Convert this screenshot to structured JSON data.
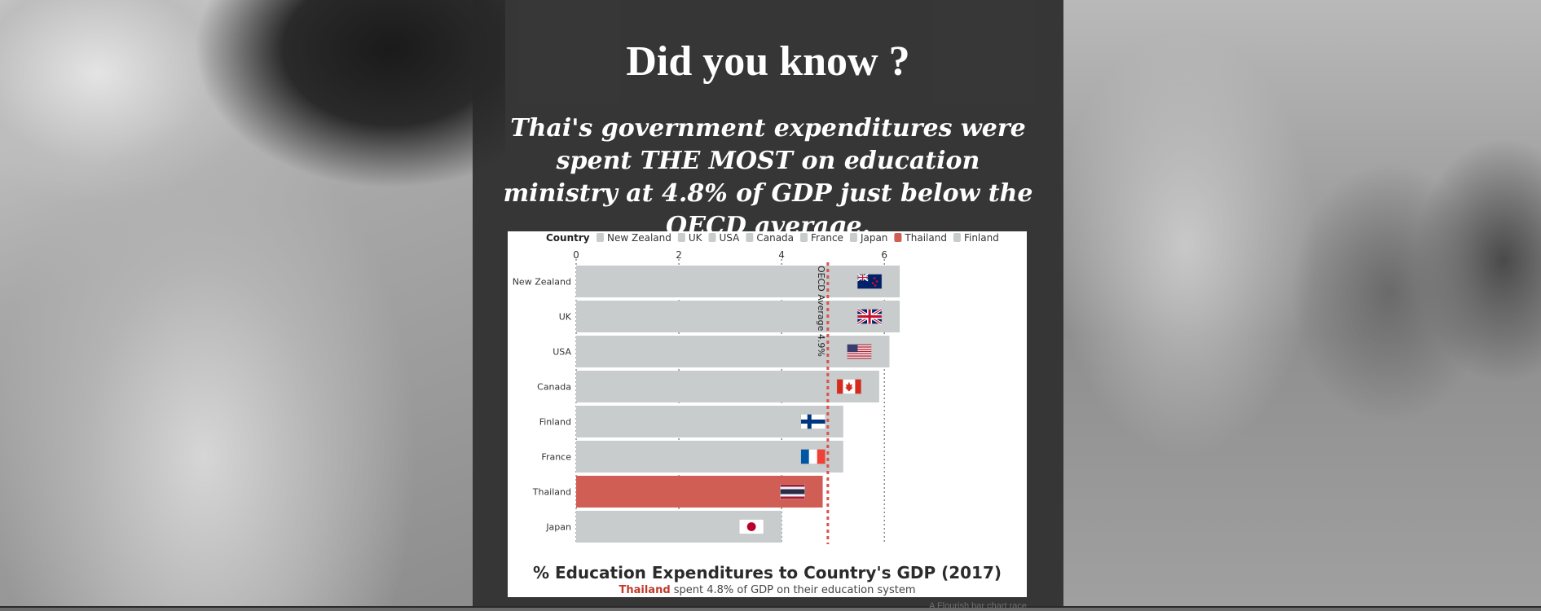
{
  "page": {
    "headline": "Did you know ?",
    "subheadline": "Thai's government expenditures were spent THE MOST on education ministry at 4.8% of GDP just below the OECD average.",
    "credit": "A Flourish bar chart race"
  },
  "colors": {
    "bar_default": "#c8cccc",
    "bar_highlight": "#d05e55",
    "reference_line": "#d9534f",
    "title_text": "#2b2b2b"
  },
  "chart_data": {
    "type": "bar",
    "orientation": "horizontal",
    "title": "% Education Expenditures to Country's GDP (2017)",
    "subtitle": {
      "highlight": "Thailand",
      "text": " spent 4.8% of GDP on their education system"
    },
    "legend": {
      "title": "Country",
      "position": "top",
      "entries": [
        {
          "name": "New Zealand",
          "color": "#c8cccc"
        },
        {
          "name": "UK",
          "color": "#c8cccc"
        },
        {
          "name": "USA",
          "color": "#c8cccc"
        },
        {
          "name": "Canada",
          "color": "#c8cccc"
        },
        {
          "name": "France",
          "color": "#c8cccc"
        },
        {
          "name": "Japan",
          "color": "#c8cccc"
        },
        {
          "name": "Thailand",
          "color": "#d05e55"
        },
        {
          "name": "Finland",
          "color": "#c8cccc"
        }
      ]
    },
    "categories": [
      "New Zealand",
      "UK",
      "USA",
      "Canada",
      "Finland",
      "France",
      "Thailand",
      "Japan"
    ],
    "values": [
      6.3,
      6.3,
      6.1,
      5.9,
      5.2,
      5.2,
      4.8,
      4.0
    ],
    "highlight_category": "Thailand",
    "flags": [
      "new-zealand-flag-icon",
      "uk-flag-icon",
      "usa-flag-icon",
      "canada-flag-icon",
      "finland-flag-icon",
      "france-flag-icon",
      "thailand-flag-icon",
      "japan-flag-icon"
    ],
    "xlim": [
      0,
      6.6
    ],
    "xticks": [
      0,
      2,
      4,
      6
    ],
    "grid": true,
    "reference_line": {
      "value": 4.9,
      "label": "OECD Average 4.9%"
    }
  }
}
